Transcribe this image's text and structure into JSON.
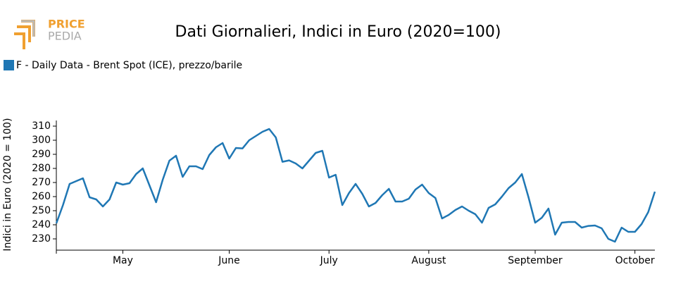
{
  "logo": {
    "line1": "PRICE",
    "line2": "PEDIA"
  },
  "chart_data": {
    "type": "line",
    "title": "Dati Giornalieri, Indici in Euro (2020=100)",
    "y_label": "Indici in Euro (2020 = 100)",
    "categories": [
      null,
      null,
      null,
      null,
      null,
      null,
      null,
      null,
      null,
      null,
      "May",
      null,
      null,
      null,
      null,
      null,
      null,
      null,
      null,
      null,
      null,
      null,
      null,
      null,
      null,
      null,
      "June",
      null,
      null,
      null,
      null,
      null,
      null,
      null,
      null,
      null,
      null,
      null,
      null,
      null,
      null,
      "July",
      null,
      null,
      null,
      null,
      null,
      null,
      null,
      null,
      null,
      null,
      null,
      null,
      null,
      null,
      "August",
      null,
      null,
      null,
      null,
      null,
      null,
      null,
      null,
      null,
      null,
      null,
      null,
      null,
      null,
      null,
      "September",
      null,
      null,
      null,
      null,
      null,
      null,
      null,
      null,
      null,
      null,
      null,
      null,
      null,
      null,
      "October",
      null,
      null,
      null
    ],
    "series": [
      {
        "name": "F - Daily Data - Brent Spot (ICE), prezzo/barile",
        "color": "#1f77b4",
        "values": [
          241,
          254,
          269,
          271,
          273,
          259.5,
          258,
          253,
          258,
          270,
          268.5,
          269.5,
          276,
          280,
          268,
          256,
          272,
          285.5,
          289,
          274,
          281.5,
          281.5,
          279.5,
          289.5,
          295,
          298,
          287,
          294.5,
          294.2,
          300,
          303,
          306,
          308,
          302,
          284.7,
          285.7,
          283.5,
          280,
          285.5,
          291,
          292.5,
          273.5,
          275.5,
          254,
          262.5,
          269,
          262,
          253,
          255.5,
          261,
          265.5,
          256.5,
          256.5,
          258.5,
          265,
          268.5,
          262.5,
          259,
          244.5,
          247,
          250.5,
          253,
          250,
          247.5,
          241.5,
          252,
          254.5,
          260,
          266,
          270,
          276,
          259.5,
          241.5,
          245,
          251.5,
          233,
          241.5,
          242,
          242,
          238,
          239.2,
          239.5,
          237.5,
          230,
          228,
          238,
          235,
          235,
          240.5,
          249,
          263.5
        ]
      }
    ],
    "ylim": [
      222,
      314
    ],
    "yticks": [
      230,
      240,
      250,
      260,
      270,
      280,
      290,
      300,
      310
    ],
    "legend": "top-left"
  }
}
